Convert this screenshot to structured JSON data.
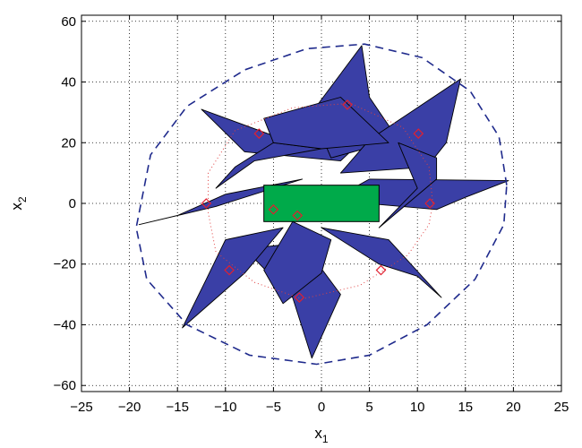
{
  "colors": {
    "star_fill": "#3a3fa6",
    "star_edge": "#000000",
    "outer_ellipse": "#1f2a8c",
    "inner_ellipse": "#e04040",
    "rectangle": "#00aa4a",
    "markers": "#e02030"
  },
  "chart_data": {
    "type": "scatter",
    "title": "",
    "xlabel": "x",
    "xlabel_sub": "1",
    "ylabel": "x",
    "ylabel_sub": "2",
    "xlim": [
      -25,
      25
    ],
    "ylim": [
      -62,
      62
    ],
    "xticks": [
      -25,
      -20,
      -15,
      -10,
      -5,
      0,
      5,
      10,
      15,
      20,
      25
    ],
    "xtick_labels": [
      "−25",
      "−20",
      "−15",
      "−10",
      "−5",
      "0",
      "5",
      "10",
      "15",
      "20",
      "25"
    ],
    "yticks": [
      -60,
      -40,
      -20,
      0,
      20,
      40,
      60
    ],
    "ytick_labels": [
      "−60",
      "−40",
      "−20",
      "0",
      "20",
      "40",
      "60"
    ],
    "grid": true,
    "rectangle": {
      "x_min": -6,
      "x_max": 6,
      "y_min": -6,
      "y_max": 6
    },
    "outer_ellipse": {
      "style": "dashed",
      "points": [
        [
          19.3,
          6
        ],
        [
          18.5,
          22
        ],
        [
          15.5,
          37
        ],
        [
          10.5,
          48
        ],
        [
          4.5,
          52.5
        ],
        [
          -1.5,
          51
        ],
        [
          -8,
          44
        ],
        [
          -14,
          32
        ],
        [
          -17.8,
          16
        ],
        [
          -19.3,
          -8
        ],
        [
          -18.2,
          -25
        ],
        [
          -14,
          -40
        ],
        [
          -7.5,
          -50
        ],
        [
          -0.5,
          -53
        ],
        [
          5,
          -50
        ],
        [
          11,
          -40
        ],
        [
          16,
          -25
        ],
        [
          19,
          -7
        ],
        [
          19.3,
          6
        ]
      ]
    },
    "inner_ellipse": {
      "style": "dotted",
      "points": [
        [
          11.6,
          0
        ],
        [
          11.2,
          12
        ],
        [
          8.5,
          25
        ],
        [
          3,
          33
        ],
        [
          -3,
          31.5
        ],
        [
          -9,
          24
        ],
        [
          -11.8,
          10
        ],
        [
          -11.8,
          -3
        ],
        [
          -11,
          -16
        ],
        [
          -7,
          -26
        ],
        [
          -2,
          -31.5
        ],
        [
          4,
          -27
        ],
        [
          9,
          -17
        ],
        [
          11.2,
          -7
        ],
        [
          11.6,
          0
        ]
      ]
    },
    "diamond_markers": [
      {
        "x": 2.7,
        "y": 32.5
      },
      {
        "x": 10.1,
        "y": 23
      },
      {
        "x": 11.3,
        "y": 0
      },
      {
        "x": 6.2,
        "y": -22
      },
      {
        "x": -2.3,
        "y": -31
      },
      {
        "x": -9.6,
        "y": -22
      },
      {
        "x": -12.0,
        "y": 0
      },
      {
        "x": -6.5,
        "y": 23
      },
      {
        "x": -5.0,
        "y": -2
      },
      {
        "x": -2.5,
        "y": -4
      }
    ],
    "star_polygons": [
      [
        [
          -12.5,
          31
        ],
        [
          -3,
          20
        ],
        [
          5,
          23
        ],
        [
          2,
          14
        ],
        [
          -8,
          17
        ]
      ],
      [
        [
          4.2,
          52
        ],
        [
          -1,
          30
        ],
        [
          1,
          15
        ],
        [
          8,
          21
        ],
        [
          5,
          35
        ]
      ],
      [
        [
          14.5,
          41
        ],
        [
          5,
          21
        ],
        [
          2,
          10
        ],
        [
          11,
          12
        ],
        [
          13,
          20
        ]
      ],
      [
        [
          19.5,
          7.5
        ],
        [
          5,
          8
        ],
        [
          1,
          1
        ],
        [
          12,
          -2
        ],
        [
          15,
          2
        ]
      ],
      [
        [
          12.5,
          -31
        ],
        [
          7,
          -12
        ],
        [
          0,
          -8
        ],
        [
          6,
          -20
        ],
        [
          10,
          -24
        ]
      ],
      [
        [
          -1,
          -51
        ],
        [
          -3,
          -31
        ],
        [
          -8,
          -15
        ],
        [
          -2,
          -13
        ],
        [
          2,
          -30
        ]
      ],
      [
        [
          -14.5,
          -41
        ],
        [
          -8,
          -23
        ],
        [
          -4,
          -8
        ],
        [
          -10,
          -12
        ],
        [
          -12,
          -25
        ]
      ],
      [
        [
          -19,
          -7
        ],
        [
          -11,
          -1
        ],
        [
          -2,
          8
        ],
        [
          -10,
          3
        ],
        [
          -15,
          -4
        ]
      ],
      [
        [
          -11,
          5
        ],
        [
          -7,
          14
        ],
        [
          0,
          18
        ],
        [
          -5,
          20
        ],
        [
          -9,
          12
        ]
      ],
      [
        [
          8,
          20
        ],
        [
          10,
          5
        ],
        [
          6,
          -8
        ],
        [
          12,
          8
        ],
        [
          12,
          15
        ]
      ],
      [
        [
          -3,
          -6
        ],
        [
          -6,
          -22
        ],
        [
          -4,
          -33
        ],
        [
          0,
          -23
        ],
        [
          1,
          -12
        ]
      ],
      [
        [
          -6,
          28
        ],
        [
          2,
          35
        ],
        [
          7,
          20
        ],
        [
          0,
          18
        ],
        [
          -5,
          20
        ]
      ]
    ]
  }
}
